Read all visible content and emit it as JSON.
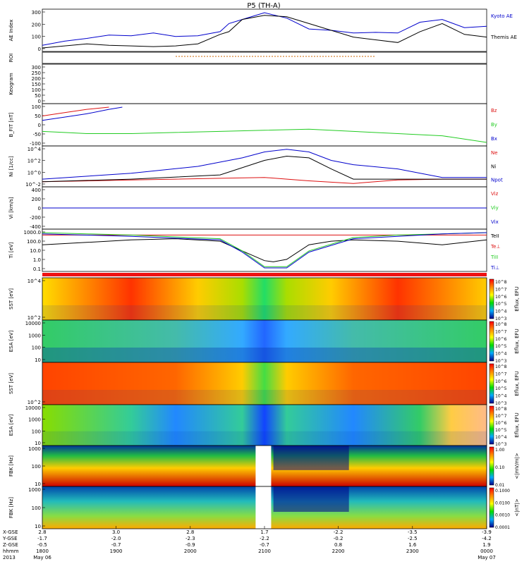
{
  "title": "P5 (TH-A)",
  "colors": {
    "blue": "#0000cc",
    "green": "#22cc22",
    "red": "#dd1111",
    "black": "#000000",
    "roi": "#cc6600"
  },
  "chart_data": [
    {
      "type": "line",
      "ylabel": "AE Index",
      "yticks": [
        "0",
        "100",
        "200",
        "300"
      ],
      "series": [
        {
          "name": "Kyoto AE",
          "color": "blue",
          "x": [
            0,
            0.05,
            0.1,
            0.15,
            0.2,
            0.25,
            0.3,
            0.35,
            0.4,
            0.42,
            0.45,
            0.5,
            0.55,
            0.6,
            0.65,
            0.7,
            0.75,
            0.8,
            0.85,
            0.9,
            0.95,
            1.0
          ],
          "values": [
            60,
            90,
            110,
            135,
            130,
            150,
            125,
            130,
            160,
            220,
            250,
            300,
            260,
            180,
            170,
            150,
            155,
            150,
            230,
            250,
            190,
            200
          ]
        },
        {
          "name": "Themis AE",
          "color": "black",
          "x": [
            0,
            0.05,
            0.1,
            0.15,
            0.2,
            0.25,
            0.3,
            0.35,
            0.4,
            0.42,
            0.45,
            0.5,
            0.55,
            0.6,
            0.65,
            0.7,
            0.75,
            0.8,
            0.85,
            0.9,
            0.95,
            1.0
          ],
          "values": [
            40,
            55,
            70,
            60,
            55,
            50,
            55,
            70,
            140,
            160,
            250,
            280,
            270,
            220,
            170,
            120,
            100,
            80,
            160,
            220,
            140,
            120
          ]
        }
      ]
    },
    {
      "type": "line",
      "ylabel": "ROI",
      "yticks": [],
      "series": []
    },
    {
      "type": "line",
      "ylabel": "Keogram",
      "yticks": [
        "0",
        "50",
        "100",
        "150",
        "200",
        "250",
        "300"
      ],
      "series": []
    },
    {
      "type": "line",
      "ylabel": "B_FIT [nT]",
      "yticks": [
        "-100",
        "-50",
        "0",
        "50",
        "100"
      ],
      "series": [
        {
          "name": "Bz",
          "color": "red",
          "x": [
            0,
            0.05,
            0.1,
            0.15
          ],
          "values": [
            60,
            75,
            90,
            100
          ]
        },
        {
          "name": "By",
          "color": "green",
          "x": [
            0,
            0.05,
            0.1,
            0.2,
            0.3,
            0.4,
            0.5,
            0.6,
            0.7,
            0.8,
            0.9,
            1.0
          ],
          "values": [
            -10,
            -15,
            -20,
            -20,
            -15,
            -10,
            -5,
            0,
            -10,
            -20,
            -30,
            -60
          ]
        },
        {
          "name": "Bx",
          "color": "blue",
          "x": [
            0,
            0.05,
            0.1,
            0.15,
            0.18
          ],
          "values": [
            40,
            55,
            70,
            90,
            100
          ]
        }
      ]
    },
    {
      "type": "line",
      "ylabel": "Ni [1/cc]",
      "yticks": [
        "10^-2",
        "10^0",
        "10^2",
        "10^4"
      ],
      "series": [
        {
          "name": "Ne",
          "color": "red",
          "x": [
            0,
            0.2,
            0.4,
            0.5,
            0.6,
            0.7,
            0.8,
            0.9,
            1.0
          ],
          "values": [
            0,
            0.2,
            0.4,
            0.5,
            0.1,
            -0.2,
            0.2,
            0.3,
            0.3
          ]
        },
        {
          "name": "Ni",
          "color": "black",
          "x": [
            0,
            0.2,
            0.4,
            0.5,
            0.55,
            0.6,
            0.65,
            0.7,
            0.8,
            1.0
          ],
          "values": [
            0,
            0.3,
            0.8,
            2.5,
            3.0,
            2.8,
            1.5,
            0.3,
            0.3,
            0.3
          ]
        },
        {
          "name": "Npot",
          "color": "blue",
          "x": [
            0,
            0.2,
            0.35,
            0.45,
            0.5,
            0.55,
            0.6,
            0.65,
            0.7,
            0.8,
            0.9,
            1.0
          ],
          "values": [
            0.3,
            1.0,
            1.8,
            2.8,
            3.5,
            3.8,
            3.5,
            2.5,
            2.0,
            1.5,
            0.5,
            0.5
          ]
        }
      ]
    },
    {
      "type": "line",
      "ylabel": "Vi [km/s]",
      "yticks": [
        "-400",
        "-200",
        "0",
        "200",
        "400"
      ],
      "series": [
        {
          "name": "Viz",
          "color": "red",
          "x": [
            0,
            1
          ],
          "values": [
            0,
            0
          ]
        },
        {
          "name": "Viy",
          "color": "green",
          "x": [
            0,
            1
          ],
          "values": [
            0,
            0
          ]
        },
        {
          "name": "Vix",
          "color": "blue",
          "x": [
            0,
            1
          ],
          "values": [
            0,
            0
          ]
        }
      ]
    },
    {
      "type": "line",
      "ylabel": "Ti [eV]",
      "yticks": [
        "0.1",
        "1.0",
        "10.0",
        "100.0",
        "1000.0"
      ],
      "series": [
        {
          "name": "TeII",
          "color": "black",
          "x": [
            0,
            0.1,
            0.2,
            0.3,
            0.4,
            0.45,
            0.5,
            0.52,
            0.55,
            0.6,
            0.65,
            0.7,
            0.8,
            0.9,
            1.0
          ],
          "values": [
            2.0,
            2.2,
            2.4,
            2.5,
            2.3,
            1.5,
            0.7,
            0.6,
            0.8,
            2.0,
            2.3,
            2.4,
            2.3,
            2.0,
            2.4
          ]
        },
        {
          "name": "Te⊥",
          "color": "red",
          "x": [
            0,
            1
          ],
          "values": [
            2.8,
            2.8
          ]
        },
        {
          "name": "TiII",
          "color": "green",
          "x": [
            0,
            0.2,
            0.4,
            0.45,
            0.5,
            0.55,
            0.6,
            0.7,
            0.8,
            0.9,
            1.0
          ],
          "values": [
            3.0,
            2.8,
            2.5,
            1.5,
            0.2,
            0.2,
            1.5,
            2.6,
            2.8,
            2.9,
            3.0
          ]
        },
        {
          "name": "Ti⊥",
          "color": "blue",
          "x": [
            0,
            0.2,
            0.4,
            0.45,
            0.5,
            0.55,
            0.6,
            0.7,
            0.8,
            0.9,
            1.0
          ],
          "values": [
            2.9,
            2.7,
            2.4,
            1.4,
            0.1,
            0.1,
            1.4,
            2.5,
            2.7,
            2.9,
            3.0
          ]
        }
      ]
    },
    {
      "type": "heatmap",
      "ylabel": "SST [eV]",
      "yticks": [
        "10^2",
        "10^4"
      ],
      "zlabel": "Eflux, EFU",
      "colorbar_ticks": [
        "10^3",
        "10^4",
        "10^5",
        "10^6",
        "10^7",
        "10^8"
      ]
    },
    {
      "type": "heatmap",
      "ylabel": "ESA [eV]",
      "yticks": [
        "10",
        "100",
        "1000",
        "10000"
      ],
      "zlabel": "Eflux, EFU",
      "colorbar_ticks": [
        "10^3",
        "10^4",
        "10^5",
        "10^6",
        "10^7",
        "10^8"
      ]
    },
    {
      "type": "heatmap",
      "ylabel": "SST [eV]",
      "yticks": [
        "10^2"
      ],
      "zlabel": "Eflux, EFU",
      "colorbar_ticks": [
        "10^3",
        "10^4",
        "10^5",
        "10^6",
        "10^7",
        "10^8"
      ]
    },
    {
      "type": "heatmap",
      "ylabel": "ESA [eV]",
      "yticks": [
        "10",
        "100",
        "1000",
        "10000"
      ],
      "zlabel": "Eflux, EFU",
      "colorbar_ticks": [
        "10^3",
        "10^4",
        "10^5",
        "10^6",
        "10^7",
        "10^8"
      ]
    },
    {
      "type": "heatmap",
      "ylabel": "FBK [Hz]",
      "yticks": [
        "10",
        "100",
        "1000"
      ],
      "zlabel": "<|mV/m|>",
      "colorbar_ticks": [
        "0.01",
        "0.10",
        "1.00"
      ]
    },
    {
      "type": "heatmap",
      "ylabel": "FBK [Hz]",
      "yticks": [
        "10",
        "100",
        "1000"
      ],
      "zlabel": "<|nT|>",
      "colorbar_ticks": [
        "0.0001",
        "0.0010",
        "0.0100",
        "0.1000"
      ]
    }
  ],
  "x_axis": {
    "row_labels": [
      "X-GSE",
      "Y-GSE",
      "Z-GSE",
      "hhmm",
      "2013"
    ],
    "ticks": [
      {
        "pos": 0,
        "vals": [
          "2.8",
          "-1.7",
          "-0.5",
          "1800",
          "May 06"
        ]
      },
      {
        "pos": 0.166,
        "vals": [
          "3.0",
          "-2.0",
          "-0.7",
          "1900",
          ""
        ]
      },
      {
        "pos": 0.333,
        "vals": [
          "2.8",
          "-2.3",
          "-0.9",
          "2000",
          ""
        ]
      },
      {
        "pos": 0.5,
        "vals": [
          "1.7",
          "-2.2",
          "-0.7",
          "2100",
          ""
        ]
      },
      {
        "pos": 0.666,
        "vals": [
          "-2.2",
          "-0.2",
          "0.8",
          "2200",
          ""
        ]
      },
      {
        "pos": 0.833,
        "vals": [
          "-3.5",
          "-2.5",
          "1.6",
          "2300",
          ""
        ]
      },
      {
        "pos": 1.0,
        "vals": [
          "-3.9",
          "-4.2",
          "1.9",
          "0000",
          "May 07"
        ]
      }
    ]
  }
}
